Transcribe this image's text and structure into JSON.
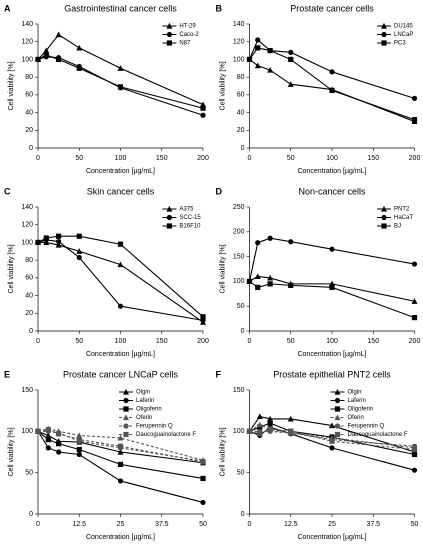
{
  "chart_data": [
    {
      "type": "line",
      "label": "A",
      "title": "Gastrointestinal cancer cells",
      "xlabel": "Concentration [µg/mL]",
      "ylabel": "Cell viability [%]",
      "x": [
        0,
        10,
        25,
        50,
        100,
        200
      ],
      "xlim": [
        0,
        200
      ],
      "xticks": [
        0,
        50,
        100,
        150,
        200
      ],
      "ylim": [
        0,
        140
      ],
      "yticks": [
        0,
        20,
        40,
        60,
        80,
        100,
        120,
        140
      ],
      "legend": "upper right",
      "series": [
        {
          "name": "HT-29",
          "color": "#000000",
          "marker": "triangle",
          "dashed": false,
          "values": [
            100,
            110,
            128,
            113,
            90,
            49
          ]
        },
        {
          "name": "Caco-2",
          "color": "#000000",
          "marker": "circle",
          "dashed": false,
          "values": [
            100,
            103,
            102,
            92,
            68,
            37
          ]
        },
        {
          "name": "N87",
          "color": "#000000",
          "marker": "square",
          "dashed": false,
          "values": [
            100,
            105,
            100,
            90,
            69,
            45
          ]
        }
      ]
    },
    {
      "type": "line",
      "label": "B",
      "title": "Prostate cancer cells",
      "xlabel": "Concentration [µg/mL]",
      "ylabel": "Cell viability [%]",
      "x": [
        0,
        10,
        25,
        50,
        100,
        200
      ],
      "xlim": [
        0,
        200
      ],
      "xticks": [
        0,
        50,
        100,
        150,
        200
      ],
      "ylim": [
        0,
        140
      ],
      "yticks": [
        0,
        20,
        40,
        60,
        80,
        100,
        120,
        140
      ],
      "legend": "upper right",
      "series": [
        {
          "name": "DU145",
          "color": "#000000",
          "marker": "triangle",
          "dashed": false,
          "values": [
            100,
            93,
            88,
            72,
            66,
            30
          ]
        },
        {
          "name": "LNCaP",
          "color": "#000000",
          "marker": "circle",
          "dashed": false,
          "values": [
            100,
            122,
            110,
            108,
            86,
            56
          ]
        },
        {
          "name": "PC3",
          "color": "#000000",
          "marker": "square",
          "dashed": false,
          "values": [
            100,
            113,
            110,
            100,
            65,
            32
          ]
        }
      ]
    },
    {
      "type": "line",
      "label": "C",
      "title": "Skin cancer cells",
      "xlabel": "Concentration [µg/mL]",
      "ylabel": "Cell viability [%]",
      "x": [
        0,
        10,
        25,
        50,
        100,
        200
      ],
      "xlim": [
        0,
        200
      ],
      "xticks": [
        0,
        50,
        100,
        150,
        200
      ],
      "ylim": [
        0,
        140
      ],
      "yticks": [
        0,
        20,
        40,
        60,
        80,
        100,
        120,
        140
      ],
      "legend": "upper right",
      "series": [
        {
          "name": "A375",
          "color": "#000000",
          "marker": "triangle",
          "dashed": false,
          "values": [
            100,
            100,
            97,
            90,
            75,
            10
          ]
        },
        {
          "name": "SCC-15",
          "color": "#000000",
          "marker": "circle",
          "dashed": false,
          "values": [
            100,
            103,
            101,
            83,
            28,
            12
          ]
        },
        {
          "name": "B16F10",
          "color": "#000000",
          "marker": "square",
          "dashed": false,
          "values": [
            100,
            105,
            107,
            107,
            98,
            16
          ]
        }
      ]
    },
    {
      "type": "line",
      "label": "D",
      "title": "Non-cancer cells",
      "xlabel": "Concentration [µg/mL]",
      "ylabel": "Cell viability [%]",
      "x": [
        0,
        10,
        25,
        50,
        100,
        200
      ],
      "xlim": [
        0,
        200
      ],
      "xticks": [
        0,
        50,
        100,
        150,
        200
      ],
      "ylim": [
        0,
        250
      ],
      "yticks": [
        0,
        50,
        100,
        150,
        200,
        250
      ],
      "legend": "upper right",
      "series": [
        {
          "name": "PNT2",
          "color": "#000000",
          "marker": "triangle",
          "dashed": false,
          "values": [
            100,
            110,
            107,
            95,
            95,
            60
          ]
        },
        {
          "name": "HaCaT",
          "color": "#000000",
          "marker": "circle",
          "dashed": false,
          "values": [
            100,
            178,
            187,
            180,
            165,
            135
          ]
        },
        {
          "name": "BJ",
          "color": "#000000",
          "marker": "square",
          "dashed": false,
          "values": [
            100,
            88,
            95,
            92,
            88,
            27
          ]
        }
      ]
    },
    {
      "type": "line",
      "label": "E",
      "title": "Prostate cancer LNCaP cells",
      "xlabel": "Concentration [µg/mL]",
      "ylabel": "Cell viability [%]",
      "x": [
        0,
        3.125,
        6.25,
        12.5,
        25,
        50
      ],
      "xlim": [
        0,
        50
      ],
      "xticks": [
        0,
        12.5,
        25,
        37.5,
        50
      ],
      "ylim": [
        0,
        150
      ],
      "yticks": [
        0,
        50,
        100,
        150
      ],
      "legend": "upper right",
      "series": [
        {
          "name": "Olgin",
          "color": "#000000",
          "marker": "triangle",
          "dashed": false,
          "values": [
            100,
            95,
            88,
            87,
            75,
            62
          ]
        },
        {
          "name": "Laferin",
          "color": "#000000",
          "marker": "circle",
          "dashed": false,
          "values": [
            100,
            80,
            75,
            72,
            40,
            14
          ]
        },
        {
          "name": "Oligoferin",
          "color": "#000000",
          "marker": "square",
          "dashed": false,
          "values": [
            100,
            90,
            85,
            78,
            60,
            43
          ]
        },
        {
          "name": "Oferin",
          "color": "#555555",
          "marker": "triangle",
          "dashed": true,
          "values": [
            100,
            103,
            100,
            95,
            92,
            65
          ]
        },
        {
          "name": "Ferupennin Q",
          "color": "#555555",
          "marker": "circle",
          "dashed": true,
          "values": [
            100,
            100,
            98,
            88,
            80,
            64
          ]
        },
        {
          "name": "Daucoguainolactone F",
          "color": "#555555",
          "marker": "square",
          "dashed": true,
          "values": [
            100,
            102,
            97,
            90,
            82,
            63
          ]
        }
      ]
    },
    {
      "type": "line",
      "label": "F",
      "title": "Prostate epithelial PNT2 cells",
      "xlabel": "Concentration [µg/mL]",
      "ylabel": "Cell viability [%]",
      "x": [
        0,
        3.125,
        6.25,
        12.5,
        25,
        50
      ],
      "xlim": [
        0,
        50
      ],
      "xticks": [
        0,
        12.5,
        25,
        37.5,
        50
      ],
      "ylim": [
        0,
        150
      ],
      "yticks": [
        0,
        50,
        100,
        150
      ],
      "legend": "upper right",
      "series": [
        {
          "name": "Olgin",
          "color": "#000000",
          "marker": "triangle",
          "dashed": false,
          "values": [
            100,
            118,
            115,
            115,
            107,
            75
          ]
        },
        {
          "name": "Laferin",
          "color": "#000000",
          "marker": "circle",
          "dashed": false,
          "values": [
            100,
            95,
            105,
            97,
            80,
            53
          ]
        },
        {
          "name": "Oligoferin",
          "color": "#000000",
          "marker": "square",
          "dashed": false,
          "values": [
            100,
            105,
            110,
            100,
            93,
            72
          ]
        },
        {
          "name": "Oferin",
          "color": "#555555",
          "marker": "triangle",
          "dashed": true,
          "values": [
            100,
            108,
            102,
            98,
            92,
            80
          ]
        },
        {
          "name": "Ferupennin Q",
          "color": "#555555",
          "marker": "circle",
          "dashed": true,
          "values": [
            100,
            100,
            100,
            98,
            90,
            82
          ]
        },
        {
          "name": "Daucoguainolactone F",
          "color": "#555555",
          "marker": "square",
          "dashed": true,
          "values": [
            100,
            97,
            103,
            100,
            88,
            78
          ]
        }
      ]
    }
  ]
}
